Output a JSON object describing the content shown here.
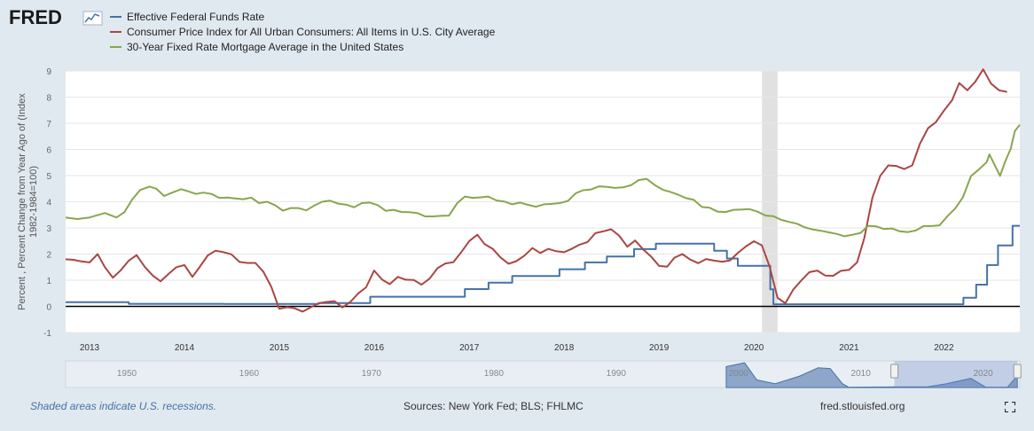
{
  "header": {
    "logo_text": "FRED"
  },
  "footer": {
    "note": "Shaded areas indicate U.S. recessions.",
    "sources": "Sources: New York Fed; BLS; FHLMC",
    "site": "fred.stlouisfed.org",
    "fullscreen_icon": "fullscreen-icon"
  },
  "colors": {
    "fedfunds": "#4572a7",
    "cpi": "#aa4643",
    "mortgage": "#89a54e",
    "recession": "#e1e1e1",
    "background": "#e1e9f0"
  },
  "chart_data": {
    "type": "line",
    "title": "",
    "xlabel": "",
    "ylabel": "Percent , Percent Change from Year Ago of (Index 1982-1984=100)",
    "ylim": [
      -1,
      9
    ],
    "xlim": [
      "2012-10-01",
      "2022-10-20"
    ],
    "y_ticks": [
      -1,
      0,
      1,
      2,
      3,
      4,
      5,
      6,
      7,
      8,
      9
    ],
    "x_ticks": [
      "2013",
      "2014",
      "2015",
      "2016",
      "2017",
      "2018",
      "2019",
      "2020",
      "2021",
      "2022"
    ],
    "grid": true,
    "legend_position": "top-left",
    "recessions": [
      [
        "2020-02-01",
        "2020-04-01"
      ]
    ],
    "series": [
      {
        "name": "Effective Federal Funds Rate",
        "color": "#4572a7",
        "step": true,
        "points": [
          [
            "2012-10-01",
            0.16
          ],
          [
            "2013-06-01",
            0.1
          ],
          [
            "2014-06-01",
            0.09
          ],
          [
            "2015-06-01",
            0.13
          ],
          [
            "2015-12-17",
            0.37
          ],
          [
            "2016-12-15",
            0.66
          ],
          [
            "2017-03-16",
            0.91
          ],
          [
            "2017-06-15",
            1.16
          ],
          [
            "2017-12-14",
            1.42
          ],
          [
            "2018-03-22",
            1.68
          ],
          [
            "2018-06-14",
            1.91
          ],
          [
            "2018-09-27",
            2.19
          ],
          [
            "2018-12-20",
            2.4
          ],
          [
            "2019-08-01",
            2.13
          ],
          [
            "2019-09-19",
            1.83
          ],
          [
            "2019-10-31",
            1.55
          ],
          [
            "2020-03-04",
            0.65
          ],
          [
            "2020-03-16",
            0.08
          ],
          [
            "2022-03-17",
            0.33
          ],
          [
            "2022-05-05",
            0.83
          ],
          [
            "2022-06-16",
            1.58
          ],
          [
            "2022-07-28",
            2.33
          ],
          [
            "2022-09-22",
            3.08
          ],
          [
            "2022-10-20",
            3.08
          ]
        ]
      },
      {
        "name": "Consumer Price Index for All Urban Consumers: All Items in U.S. City Average",
        "color": "#aa4643",
        "step": false,
        "points": [
          [
            "2012-10-01",
            1.8
          ],
          [
            "2012-11-01",
            1.78
          ],
          [
            "2012-12-01",
            1.72
          ],
          [
            "2013-01-01",
            1.68
          ],
          [
            "2013-02-01",
            2.0
          ],
          [
            "2013-03-01",
            1.5
          ],
          [
            "2013-04-01",
            1.1
          ],
          [
            "2013-05-01",
            1.38
          ],
          [
            "2013-06-01",
            1.75
          ],
          [
            "2013-07-01",
            1.96
          ],
          [
            "2013-08-01",
            1.52
          ],
          [
            "2013-09-01",
            1.18
          ],
          [
            "2013-10-01",
            0.96
          ],
          [
            "2013-11-01",
            1.24
          ],
          [
            "2013-12-01",
            1.5
          ],
          [
            "2014-01-01",
            1.58
          ],
          [
            "2014-02-01",
            1.13
          ],
          [
            "2014-03-01",
            1.51
          ],
          [
            "2014-04-01",
            1.95
          ],
          [
            "2014-05-01",
            2.13
          ],
          [
            "2014-06-01",
            2.07
          ],
          [
            "2014-07-01",
            1.99
          ],
          [
            "2014-08-01",
            1.7
          ],
          [
            "2014-09-01",
            1.66
          ],
          [
            "2014-10-01",
            1.66
          ],
          [
            "2014-11-01",
            1.32
          ],
          [
            "2014-12-01",
            0.76
          ],
          [
            "2015-01-01",
            -0.09
          ],
          [
            "2015-02-01",
            -0.03
          ],
          [
            "2015-03-01",
            -0.07
          ],
          [
            "2015-04-01",
            -0.2
          ],
          [
            "2015-05-01",
            -0.04
          ],
          [
            "2015-06-01",
            0.12
          ],
          [
            "2015-07-01",
            0.17
          ],
          [
            "2015-08-01",
            0.2
          ],
          [
            "2015-09-01",
            -0.04
          ],
          [
            "2015-10-01",
            0.17
          ],
          [
            "2015-11-01",
            0.5
          ],
          [
            "2015-12-01",
            0.73
          ],
          [
            "2016-01-01",
            1.37
          ],
          [
            "2016-02-01",
            1.02
          ],
          [
            "2016-03-01",
            0.85
          ],
          [
            "2016-04-01",
            1.13
          ],
          [
            "2016-05-01",
            1.02
          ],
          [
            "2016-06-01",
            1.01
          ],
          [
            "2016-07-01",
            0.83
          ],
          [
            "2016-08-01",
            1.06
          ],
          [
            "2016-09-01",
            1.46
          ],
          [
            "2016-10-01",
            1.64
          ],
          [
            "2016-11-01",
            1.69
          ],
          [
            "2016-12-01",
            2.07
          ],
          [
            "2017-01-01",
            2.5
          ],
          [
            "2017-02-01",
            2.74
          ],
          [
            "2017-03-01",
            2.38
          ],
          [
            "2017-04-01",
            2.2
          ],
          [
            "2017-05-01",
            1.87
          ],
          [
            "2017-06-01",
            1.63
          ],
          [
            "2017-07-01",
            1.73
          ],
          [
            "2017-08-01",
            1.94
          ],
          [
            "2017-09-01",
            2.23
          ],
          [
            "2017-10-01",
            2.04
          ],
          [
            "2017-11-01",
            2.2
          ],
          [
            "2017-12-01",
            2.11
          ],
          [
            "2018-01-01",
            2.07
          ],
          [
            "2018-02-01",
            2.21
          ],
          [
            "2018-03-01",
            2.36
          ],
          [
            "2018-04-01",
            2.46
          ],
          [
            "2018-05-01",
            2.8
          ],
          [
            "2018-06-01",
            2.87
          ],
          [
            "2018-07-01",
            2.95
          ],
          [
            "2018-08-01",
            2.7
          ],
          [
            "2018-09-01",
            2.28
          ],
          [
            "2018-10-01",
            2.52
          ],
          [
            "2018-11-01",
            2.18
          ],
          [
            "2018-12-01",
            1.91
          ],
          [
            "2019-01-01",
            1.55
          ],
          [
            "2019-02-01",
            1.52
          ],
          [
            "2019-03-01",
            1.86
          ],
          [
            "2019-04-01",
            2.0
          ],
          [
            "2019-05-01",
            1.79
          ],
          [
            "2019-06-01",
            1.65
          ],
          [
            "2019-07-01",
            1.81
          ],
          [
            "2019-08-01",
            1.75
          ],
          [
            "2019-09-01",
            1.71
          ],
          [
            "2019-10-01",
            1.76
          ],
          [
            "2019-11-01",
            2.05
          ],
          [
            "2019-12-01",
            2.29
          ],
          [
            "2020-01-01",
            2.49
          ],
          [
            "2020-02-01",
            2.33
          ],
          [
            "2020-03-01",
            1.54
          ],
          [
            "2020-04-01",
            0.33
          ],
          [
            "2020-05-01",
            0.12
          ],
          [
            "2020-06-01",
            0.65
          ],
          [
            "2020-07-01",
            0.99
          ],
          [
            "2020-08-01",
            1.31
          ],
          [
            "2020-09-01",
            1.37
          ],
          [
            "2020-10-01",
            1.18
          ],
          [
            "2020-11-01",
            1.17
          ],
          [
            "2020-12-01",
            1.36
          ],
          [
            "2021-01-01",
            1.4
          ],
          [
            "2021-02-01",
            1.68
          ],
          [
            "2021-03-01",
            2.62
          ],
          [
            "2021-04-01",
            4.16
          ],
          [
            "2021-05-01",
            4.99
          ],
          [
            "2021-06-01",
            5.39
          ],
          [
            "2021-07-01",
            5.37
          ],
          [
            "2021-08-01",
            5.25
          ],
          [
            "2021-09-01",
            5.39
          ],
          [
            "2021-10-01",
            6.22
          ],
          [
            "2021-11-01",
            6.81
          ],
          [
            "2021-12-01",
            7.04
          ],
          [
            "2022-01-01",
            7.48
          ],
          [
            "2022-02-01",
            7.87
          ],
          [
            "2022-03-01",
            8.54
          ],
          [
            "2022-04-01",
            8.26
          ],
          [
            "2022-05-01",
            8.58
          ],
          [
            "2022-06-01",
            9.06
          ],
          [
            "2022-07-01",
            8.52
          ],
          [
            "2022-08-01",
            8.26
          ],
          [
            "2022-09-01",
            8.2
          ]
        ]
      },
      {
        "name": "30-Year Fixed Rate Mortgage Average in the United States",
        "color": "#89a54e",
        "step": false,
        "points": [
          [
            "2012-10-01",
            3.4
          ],
          [
            "2012-11-15",
            3.34
          ],
          [
            "2013-01-01",
            3.4
          ],
          [
            "2013-03-01",
            3.57
          ],
          [
            "2013-04-15",
            3.4
          ],
          [
            "2013-05-15",
            3.6
          ],
          [
            "2013-06-15",
            4.1
          ],
          [
            "2013-07-15",
            4.45
          ],
          [
            "2013-08-20",
            4.58
          ],
          [
            "2013-09-15",
            4.5
          ],
          [
            "2013-10-15",
            4.22
          ],
          [
            "2013-11-15",
            4.35
          ],
          [
            "2013-12-20",
            4.48
          ],
          [
            "2014-01-15",
            4.4
          ],
          [
            "2014-02-15",
            4.3
          ],
          [
            "2014-03-15",
            4.35
          ],
          [
            "2014-04-15",
            4.3
          ],
          [
            "2014-05-15",
            4.15
          ],
          [
            "2014-06-15",
            4.16
          ],
          [
            "2014-07-15",
            4.13
          ],
          [
            "2014-08-15",
            4.1
          ],
          [
            "2014-09-15",
            4.16
          ],
          [
            "2014-10-15",
            3.95
          ],
          [
            "2014-11-15",
            4.0
          ],
          [
            "2014-12-15",
            3.87
          ],
          [
            "2015-01-15",
            3.66
          ],
          [
            "2015-02-15",
            3.76
          ],
          [
            "2015-03-15",
            3.76
          ],
          [
            "2015-04-15",
            3.67
          ],
          [
            "2015-05-15",
            3.85
          ],
          [
            "2015-06-15",
            4.0
          ],
          [
            "2015-07-15",
            4.04
          ],
          [
            "2015-08-15",
            3.93
          ],
          [
            "2015-09-15",
            3.89
          ],
          [
            "2015-10-15",
            3.79
          ],
          [
            "2015-11-15",
            3.95
          ],
          [
            "2015-12-15",
            3.97
          ],
          [
            "2016-01-15",
            3.87
          ],
          [
            "2016-02-15",
            3.65
          ],
          [
            "2016-03-15",
            3.69
          ],
          [
            "2016-04-15",
            3.61
          ],
          [
            "2016-05-15",
            3.6
          ],
          [
            "2016-06-15",
            3.57
          ],
          [
            "2016-07-15",
            3.44
          ],
          [
            "2016-08-15",
            3.44
          ],
          [
            "2016-09-15",
            3.46
          ],
          [
            "2016-10-15",
            3.47
          ],
          [
            "2016-11-15",
            3.94
          ],
          [
            "2016-12-15",
            4.2
          ],
          [
            "2017-01-15",
            4.15
          ],
          [
            "2017-02-15",
            4.17
          ],
          [
            "2017-03-15",
            4.2
          ],
          [
            "2017-04-15",
            4.05
          ],
          [
            "2017-05-15",
            4.01
          ],
          [
            "2017-06-15",
            3.9
          ],
          [
            "2017-07-15",
            3.97
          ],
          [
            "2017-08-15",
            3.88
          ],
          [
            "2017-09-15",
            3.81
          ],
          [
            "2017-10-15",
            3.9
          ],
          [
            "2017-11-15",
            3.92
          ],
          [
            "2017-12-15",
            3.95
          ],
          [
            "2018-01-15",
            4.03
          ],
          [
            "2018-02-15",
            4.33
          ],
          [
            "2018-03-15",
            4.44
          ],
          [
            "2018-04-15",
            4.47
          ],
          [
            "2018-05-15",
            4.59
          ],
          [
            "2018-06-15",
            4.57
          ],
          [
            "2018-07-15",
            4.53
          ],
          [
            "2018-08-15",
            4.55
          ],
          [
            "2018-09-15",
            4.63
          ],
          [
            "2018-10-15",
            4.83
          ],
          [
            "2018-11-15",
            4.87
          ],
          [
            "2018-12-15",
            4.64
          ],
          [
            "2019-01-15",
            4.46
          ],
          [
            "2019-02-15",
            4.37
          ],
          [
            "2019-03-15",
            4.27
          ],
          [
            "2019-04-15",
            4.14
          ],
          [
            "2019-05-15",
            4.07
          ],
          [
            "2019-06-15",
            3.8
          ],
          [
            "2019-07-15",
            3.77
          ],
          [
            "2019-08-15",
            3.62
          ],
          [
            "2019-09-15",
            3.61
          ],
          [
            "2019-10-15",
            3.69
          ],
          [
            "2019-11-15",
            3.7
          ],
          [
            "2019-12-15",
            3.72
          ],
          [
            "2020-01-15",
            3.62
          ],
          [
            "2020-02-15",
            3.47
          ],
          [
            "2020-03-15",
            3.45
          ],
          [
            "2020-04-15",
            3.31
          ],
          [
            "2020-05-15",
            3.23
          ],
          [
            "2020-06-15",
            3.16
          ],
          [
            "2020-07-15",
            3.02
          ],
          [
            "2020-08-15",
            2.94
          ],
          [
            "2020-09-15",
            2.89
          ],
          [
            "2020-10-15",
            2.83
          ],
          [
            "2020-11-15",
            2.77
          ],
          [
            "2020-12-15",
            2.68
          ],
          [
            "2021-01-15",
            2.74
          ],
          [
            "2021-02-15",
            2.81
          ],
          [
            "2021-03-15",
            3.08
          ],
          [
            "2021-04-15",
            3.06
          ],
          [
            "2021-05-15",
            2.96
          ],
          [
            "2021-06-15",
            2.98
          ],
          [
            "2021-07-15",
            2.87
          ],
          [
            "2021-08-15",
            2.84
          ],
          [
            "2021-09-15",
            2.9
          ],
          [
            "2021-10-15",
            3.07
          ],
          [
            "2021-11-15",
            3.07
          ],
          [
            "2021-12-15",
            3.1
          ],
          [
            "2022-01-15",
            3.45
          ],
          [
            "2022-02-15",
            3.76
          ],
          [
            "2022-03-15",
            4.17
          ],
          [
            "2022-04-15",
            4.98
          ],
          [
            "2022-05-15",
            5.23
          ],
          [
            "2022-06-15",
            5.52
          ],
          [
            "2022-06-25",
            5.81
          ],
          [
            "2022-07-15",
            5.41
          ],
          [
            "2022-08-05",
            4.99
          ],
          [
            "2022-08-25",
            5.55
          ],
          [
            "2022-09-15",
            6.02
          ],
          [
            "2022-10-01",
            6.7
          ],
          [
            "2022-10-20",
            6.94
          ]
        ]
      }
    ],
    "navigator": {
      "x_ticks": [
        "1950",
        "1960",
        "1970",
        "1980",
        "1990",
        "2000",
        "2010",
        "2020"
      ],
      "xlim": [
        1945,
        2023
      ],
      "selection": [
        2012.75,
        2022.8
      ]
    }
  }
}
